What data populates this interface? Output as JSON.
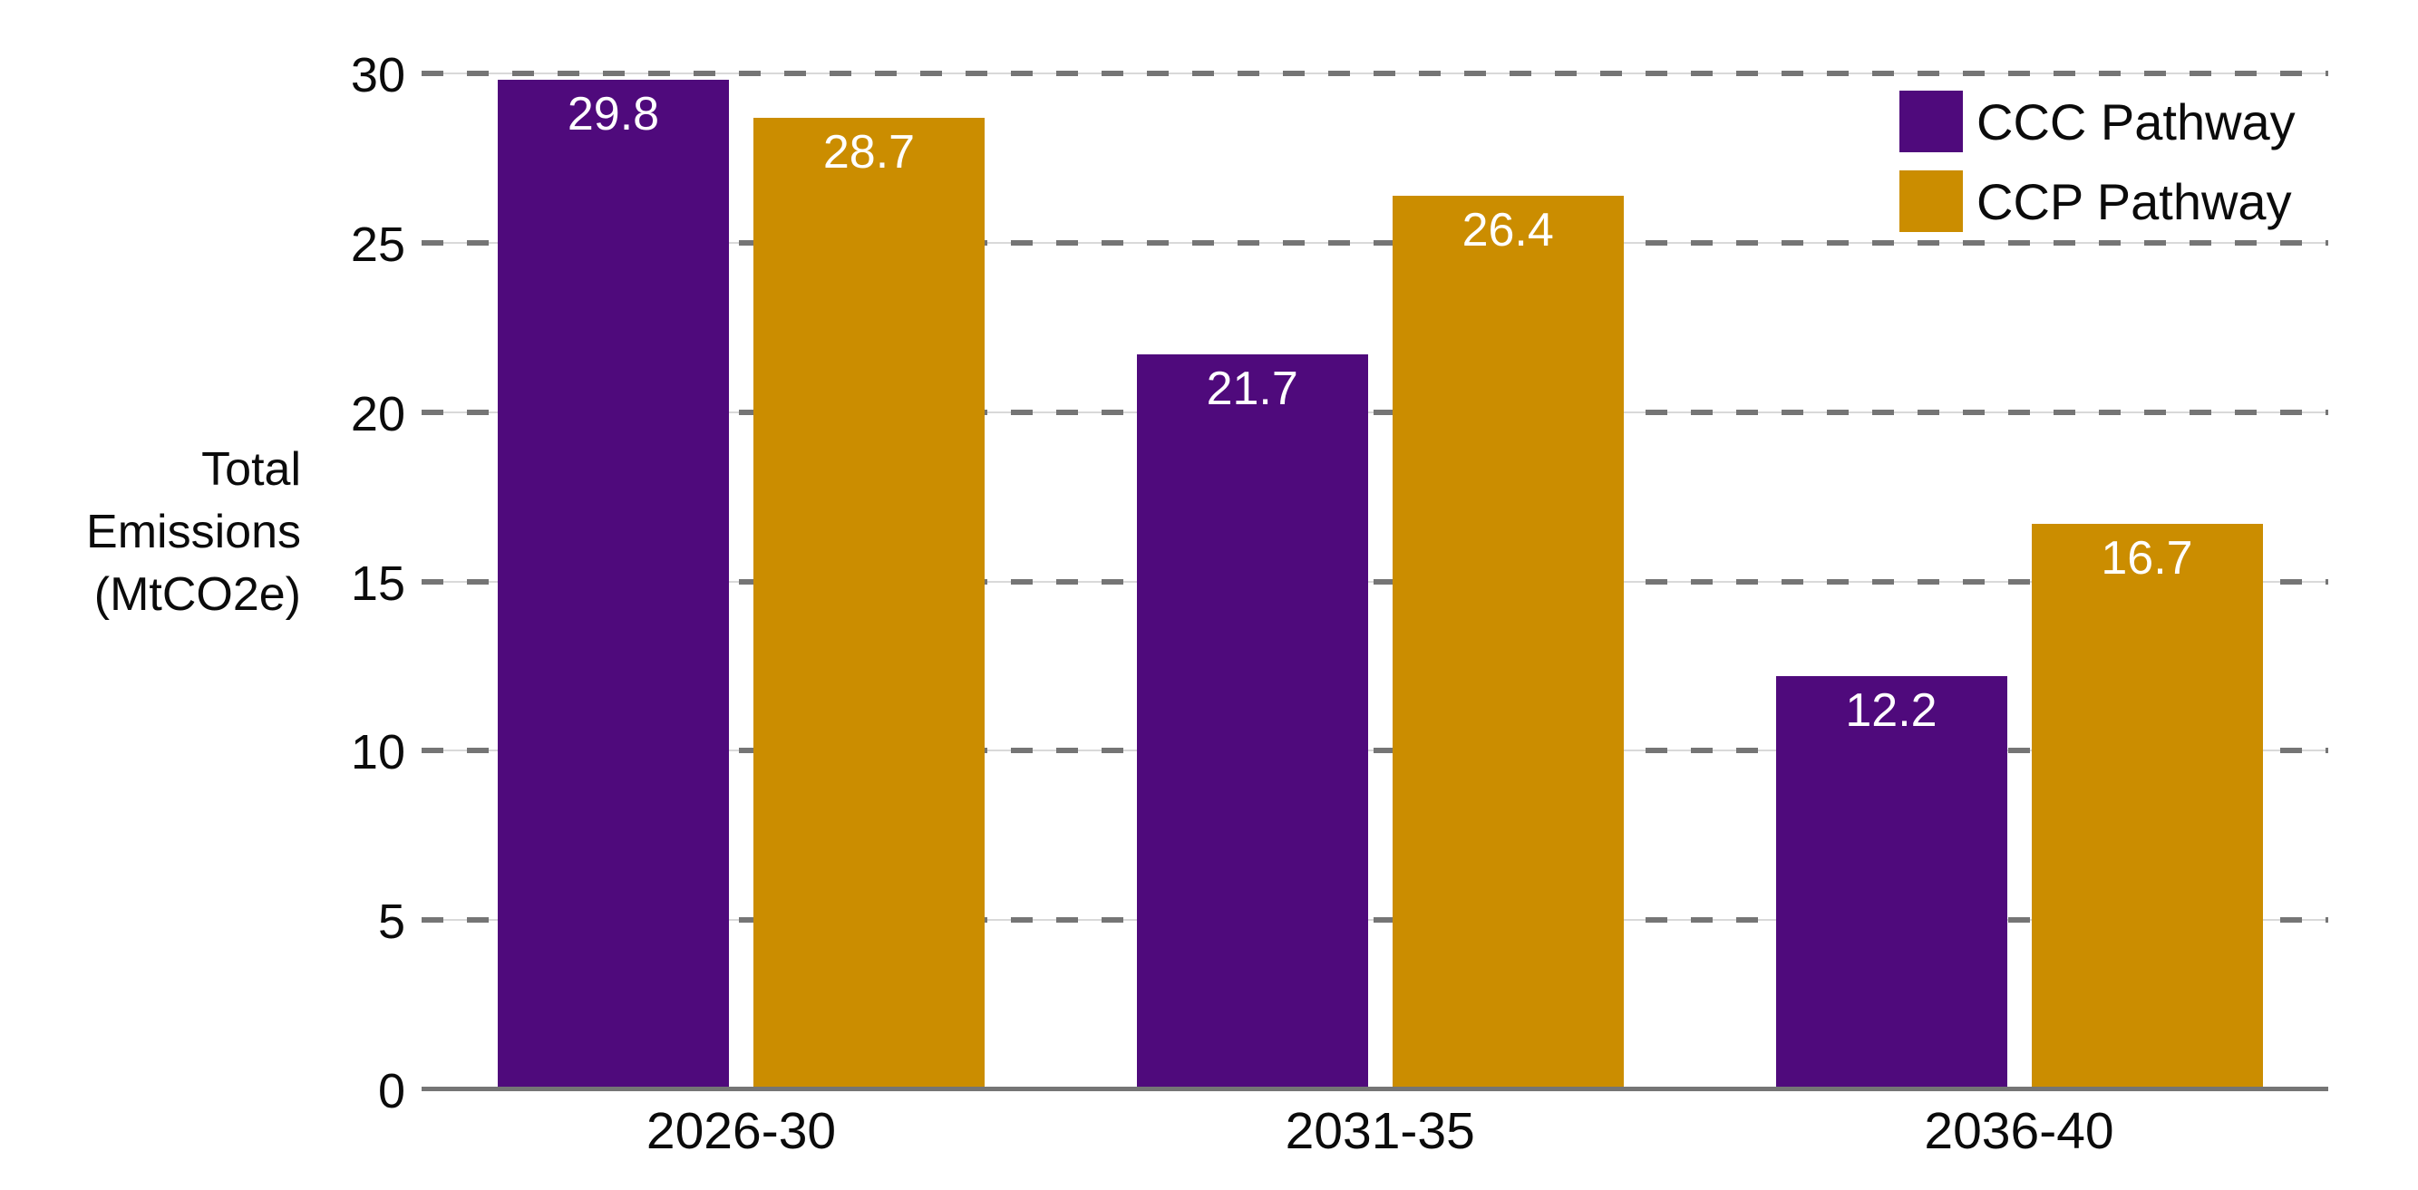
{
  "chart_data": {
    "type": "bar",
    "title": "",
    "categories": [
      "2026-30",
      "2031-35",
      "2036-40"
    ],
    "series": [
      {
        "name": "CCC Pathway",
        "color": "#4f0a7c",
        "values": [
          29.8,
          21.7,
          12.2
        ]
      },
      {
        "name": "CCP Pathway",
        "color": "#cb8d00",
        "values": [
          28.7,
          26.4,
          16.7
        ]
      }
    ],
    "xlabel": "",
    "ylabel": "Total Emissions (MtCO2e)",
    "ylabel_lines": [
      "Total",
      "Emissions",
      "(MtCO2e)"
    ],
    "ylim": [
      0,
      30
    ],
    "yticks": [
      0,
      5,
      10,
      15,
      20,
      25,
      30
    ],
    "grid": "horizontal-dashed",
    "legend_position": "top-right",
    "value_labels": "inside-top-white",
    "value_label_format": "one-decimal"
  },
  "colors": {
    "background": "#ffffff",
    "grid_dash": "#757575",
    "grid_thin": "#d9d9d9",
    "baseline": "#757575",
    "axis_text": "#0b0b0b",
    "bar_value_text": "#ffffff",
    "series_ccc": "#4f0a7c",
    "series_ccp": "#cb8d00"
  }
}
